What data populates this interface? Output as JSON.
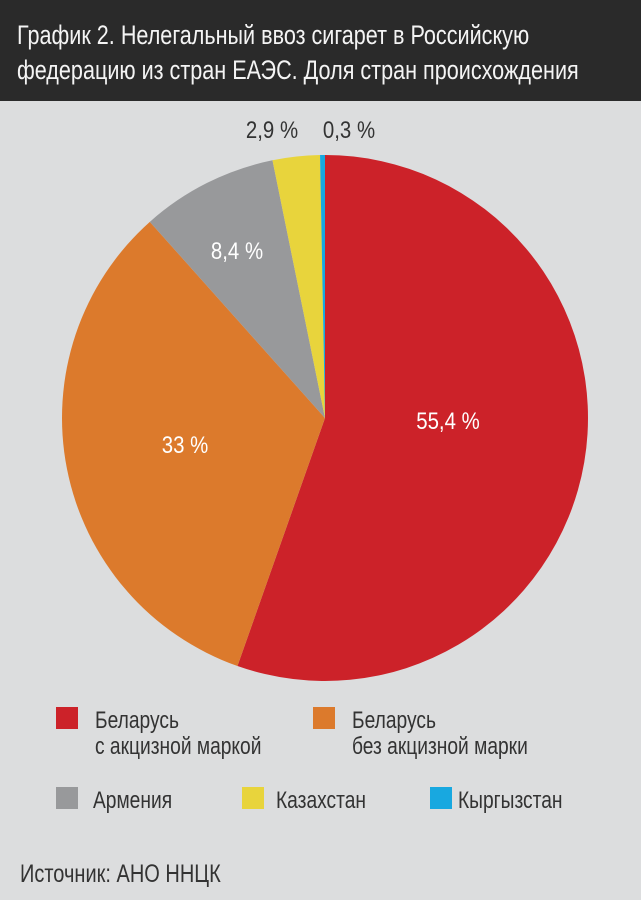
{
  "chart_data": {
    "type": "pie",
    "title": [
      "График 2. Нелегальный ввоз сигарет в Российскую",
      "федерацию из стран ЕАЭС. Доля стран происхождения"
    ],
    "slices": [
      {
        "name": "Беларусь с акцизной маркой",
        "legend": [
          "Беларусь",
          "с акцизной маркой"
        ],
        "value": 55.4,
        "label": "55,4 %",
        "color": "#cc2229"
      },
      {
        "name": "Беларусь без акцизной марки",
        "legend": [
          "Беларусь",
          "без акцизной марки"
        ],
        "value": 33,
        "label": "33 %",
        "color": "#dc7a2c"
      },
      {
        "name": "Армения",
        "legend": [
          "Армения"
        ],
        "value": 8.4,
        "label": "8,4 %",
        "color": "#98999b"
      },
      {
        "name": "Казахстан",
        "legend": [
          "Казахстан"
        ],
        "value": 2.9,
        "label": "2,9 %",
        "color": "#e8d43c"
      },
      {
        "name": "Кыргызстан",
        "legend": [
          "Кыргызстан"
        ],
        "value": 0.3,
        "label": "0,3 %",
        "color": "#18a8e0"
      }
    ],
    "start_angle": "12 o'clock",
    "direction": "clockwise",
    "legend_position": "bottom"
  },
  "source": "Источник: АНО ННЦК"
}
